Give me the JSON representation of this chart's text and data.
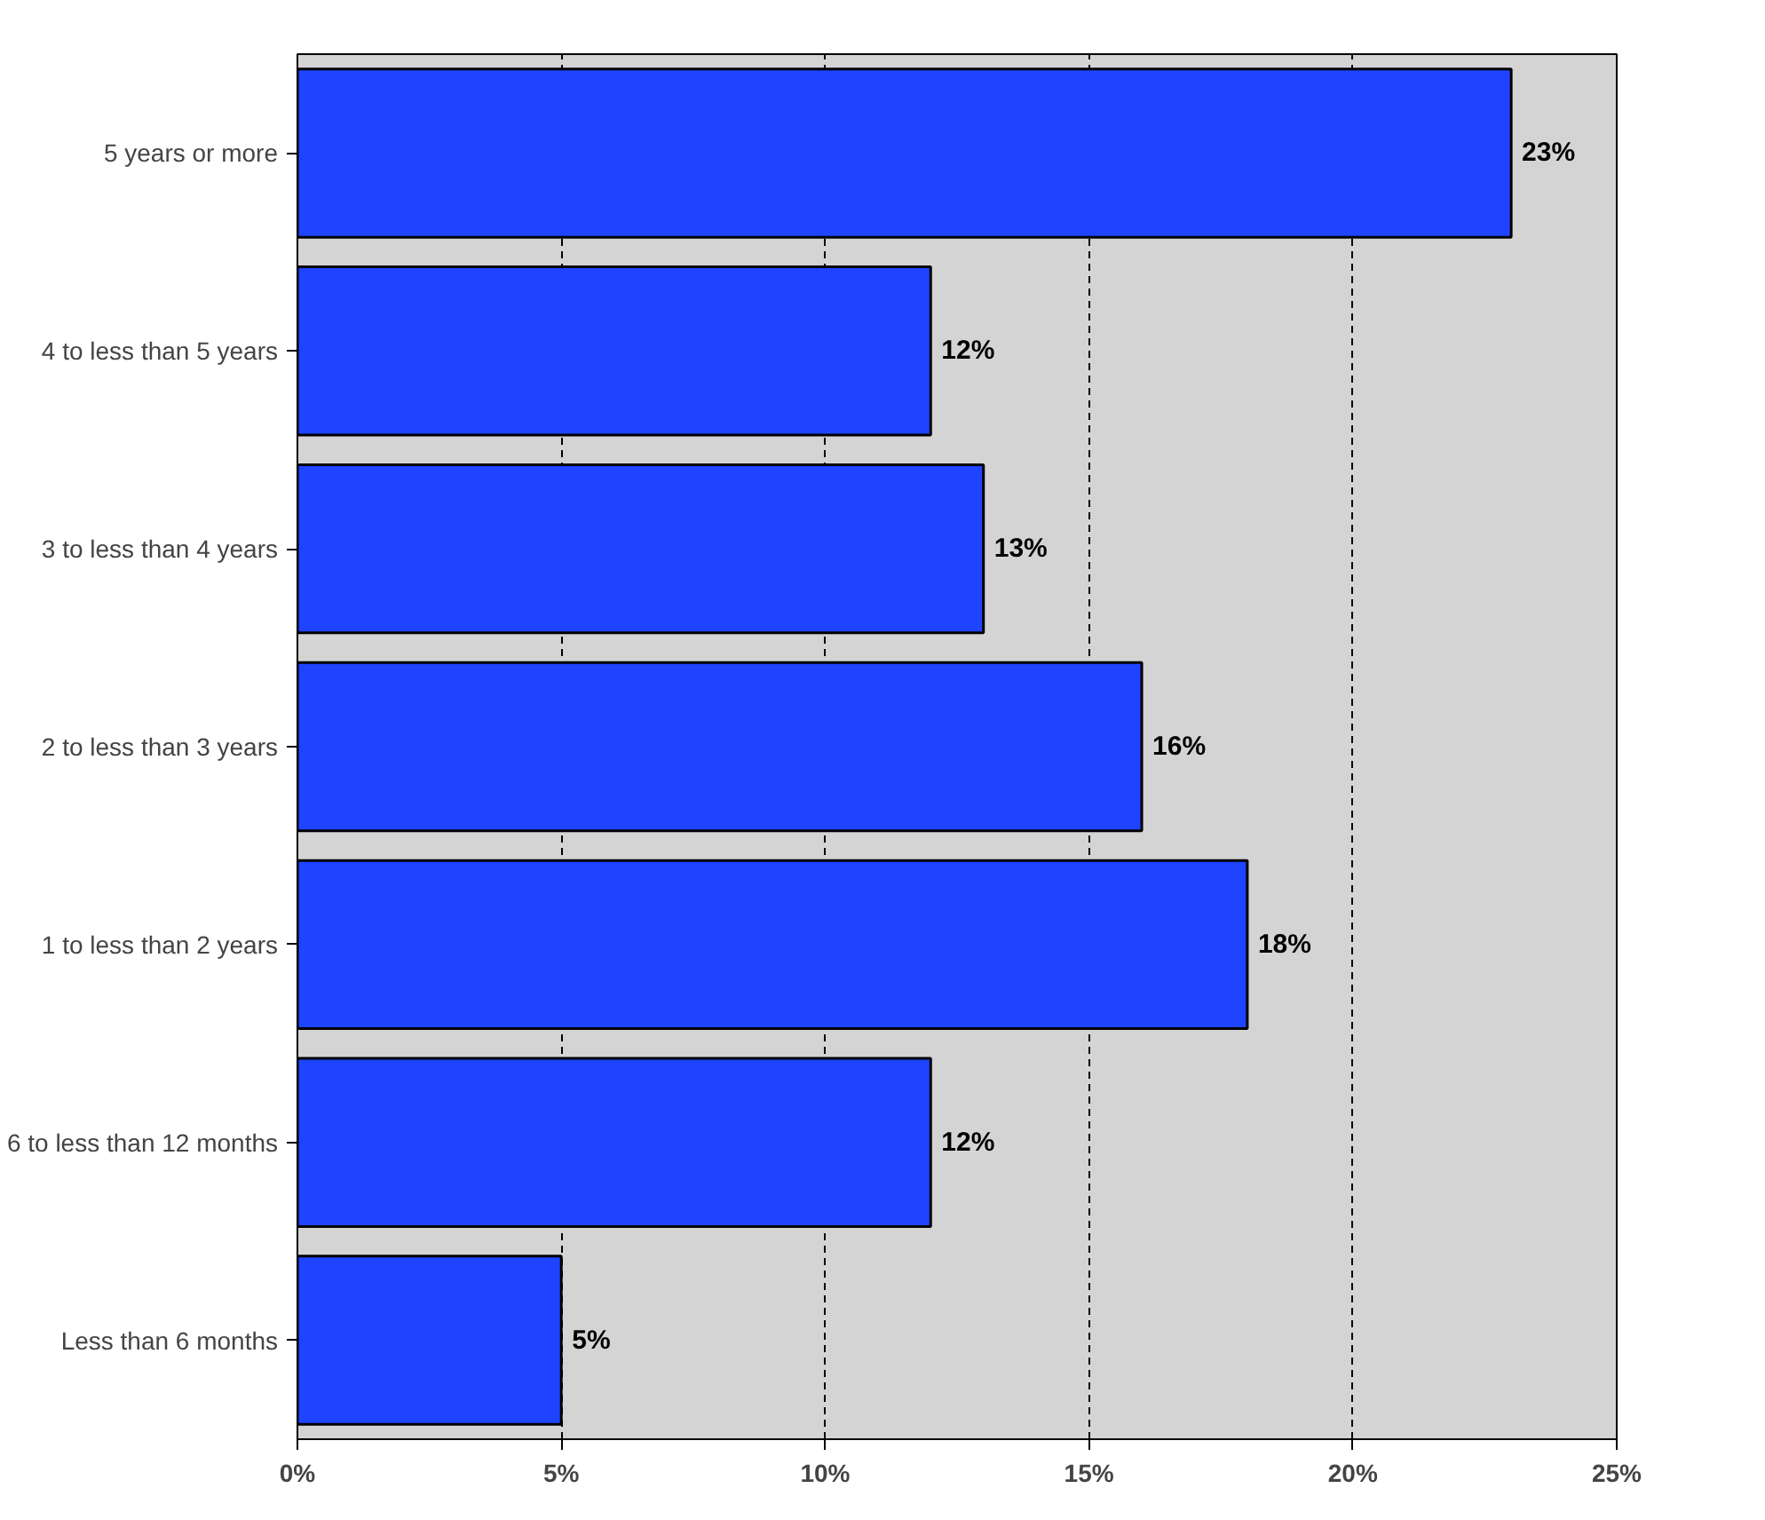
{
  "chart_data": {
    "type": "bar",
    "orientation": "horizontal",
    "categories": [
      "5 years or more",
      "4 to less than 5 years",
      "3 to less than 4 years",
      "2 to less than 3 years",
      "1 to less than 2 years",
      "6 to less than 12 months",
      "Less than 6 months"
    ],
    "values": [
      23,
      12,
      13,
      16,
      18,
      12,
      5
    ],
    "value_labels": [
      "23%",
      "12%",
      "13%",
      "16%",
      "18%",
      "12%",
      "5%"
    ],
    "color": "#1f44ff",
    "xlim": [
      0,
      25
    ],
    "xticks": [
      {
        "value": 0,
        "label": "0%"
      },
      {
        "value": 5,
        "label": "5%"
      },
      {
        "value": 10,
        "label": "10%"
      },
      {
        "value": 15,
        "label": "15%"
      },
      {
        "value": 20,
        "label": "20%"
      },
      {
        "value": 25,
        "label": "25%"
      }
    ],
    "grid": "x"
  }
}
